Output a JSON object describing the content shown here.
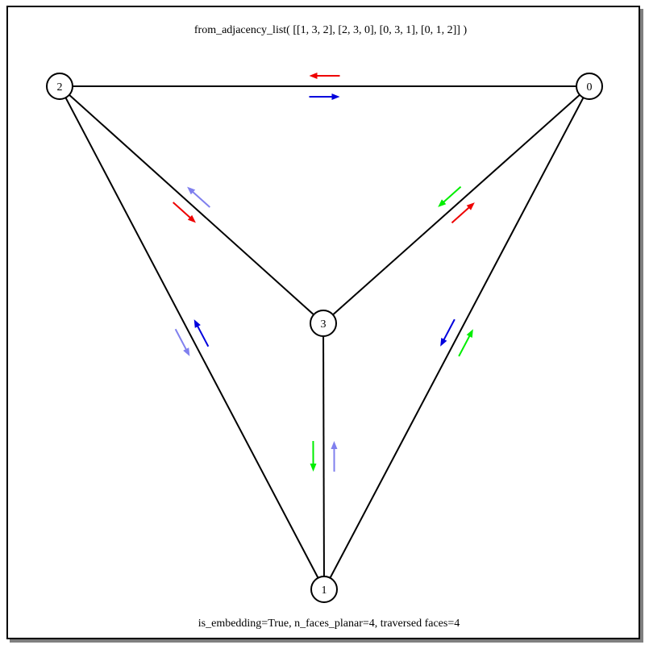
{
  "title": "from_adjacency_list( [[1, 3, 2], [2, 3, 0], [0, 3, 1], [0, 1, 2]]  )",
  "footer": "is_embedding=True,  n_faces_planar=4,  traversed faces=4",
  "nodes": [
    {
      "id": "0",
      "label": "0"
    },
    {
      "id": "1",
      "label": "1"
    },
    {
      "id": "2",
      "label": "2"
    },
    {
      "id": "3",
      "label": "3"
    }
  ],
  "edges": [
    {
      "from": "2",
      "to": "0"
    },
    {
      "from": "2",
      "to": "3"
    },
    {
      "from": "2",
      "to": "1"
    },
    {
      "from": "3",
      "to": "0"
    },
    {
      "from": "1",
      "to": "0"
    },
    {
      "from": "3",
      "to": "1"
    }
  ],
  "colors": {
    "blue": "#0000dd",
    "red": "#ee0000",
    "green": "#00ee00",
    "lightblue": "#8080ee",
    "edge": "#000000"
  },
  "face_arrows": [
    {
      "edge": "2-0",
      "color": "blue"
    },
    {
      "edge": "0-2",
      "color": "red"
    },
    {
      "edge": "2-3",
      "color": "red"
    },
    {
      "edge": "3-2",
      "color": "lightblue"
    },
    {
      "edge": "3-0",
      "color": "red"
    },
    {
      "edge": "0-3",
      "color": "green"
    },
    {
      "edge": "1-0",
      "color": "green"
    },
    {
      "edge": "0-1",
      "color": "blue"
    },
    {
      "edge": "1-2",
      "color": "blue"
    },
    {
      "edge": "2-1",
      "color": "lightblue"
    },
    {
      "edge": "1-3",
      "color": "lightblue"
    },
    {
      "edge": "3-1",
      "color": "green"
    }
  ]
}
